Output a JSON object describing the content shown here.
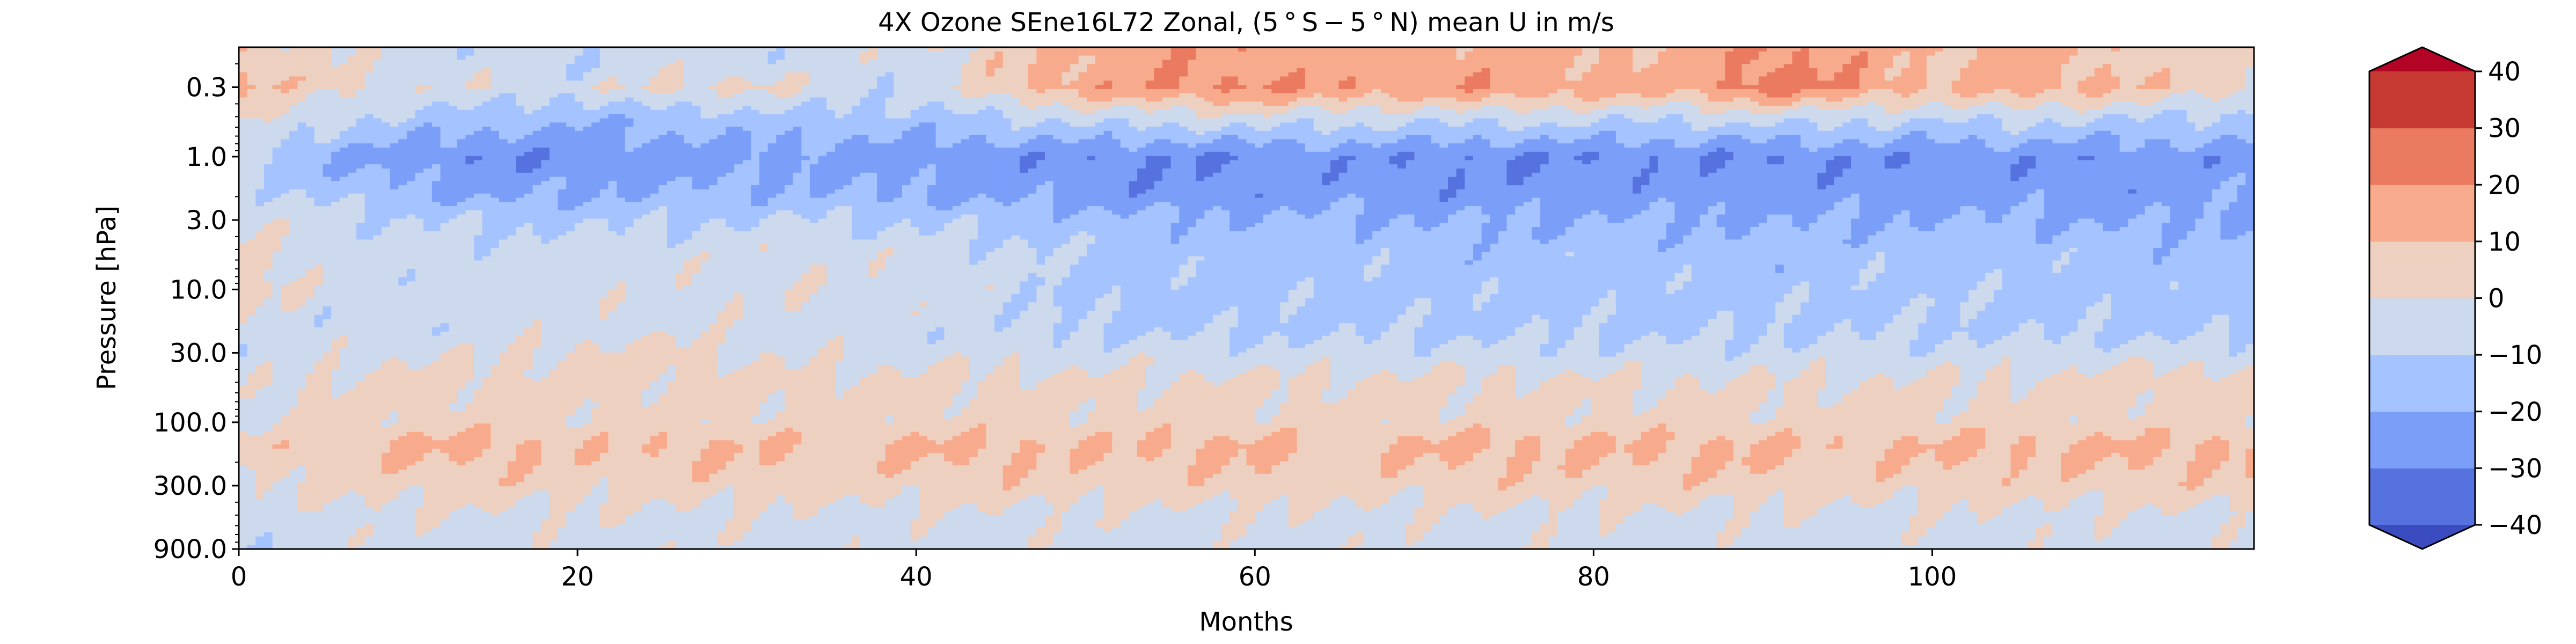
{
  "chart_data": {
    "type": "heatmap",
    "subtype": "filled-contour",
    "title": "4X Ozone SEne16L72 Zonal, (5$^\\circ$S$-$5$^\\circ$N) mean U in m/s",
    "title_display": "4X Ozone SEne16L72 Zonal, (5 ° S − 5 ° N) mean U in m/s",
    "xlabel": "Months",
    "ylabel": "Pressure [hPa]",
    "xlim": [
      0,
      119
    ],
    "ylim": [
      900,
      0.15
    ],
    "yscale": "log",
    "x_ticks": [
      0,
      20,
      40,
      60,
      80,
      100
    ],
    "x_tick_labels": [
      "0",
      "20",
      "40",
      "60",
      "80",
      "100"
    ],
    "y_ticks": [
      0.3,
      1.0,
      3.0,
      10.0,
      30.0,
      100.0,
      300.0,
      900.0
    ],
    "y_tick_labels": [
      "0.3",
      "1.0",
      "3.0",
      "10.0",
      "30.0",
      "100.0",
      "300.0",
      "900.0"
    ],
    "grid": false,
    "colormap": "coolwarm",
    "levels": [
      -40,
      -30,
      -20,
      -10,
      0,
      10,
      20,
      30,
      40
    ],
    "extend": "both",
    "level_colors": [
      "#3b4cc0",
      "#5572df",
      "#7b9ff9",
      "#a5c3fe",
      "#cdd9ec",
      "#eed0c0",
      "#f7aa8c",
      "#ea7b60",
      "#c73a33",
      "#b40426"
    ],
    "colorbar_tick_labels": [
      "40",
      "30",
      "20",
      "10",
      "0",
      "−10",
      "−20",
      "−30",
      "−40"
    ],
    "colorbar_ticks": [
      40,
      30,
      20,
      10,
      0,
      -10,
      -20,
      -30,
      -40
    ],
    "pressure_levels": [
      0.2,
      0.3,
      0.5,
      1.0,
      2.0,
      3.0,
      5.0,
      10.0,
      20.0,
      30.0,
      50.0,
      100.0,
      150.0,
      200.0,
      300.0,
      500.0,
      900.0
    ],
    "month_knots": [
      0,
      5,
      10,
      15,
      20,
      25,
      30,
      35,
      40,
      45,
      50,
      55,
      60,
      65,
      70,
      75,
      80,
      85,
      90,
      95,
      100,
      105,
      110,
      115,
      119
    ],
    "u_wind_knots": [
      [
        8,
        2,
        -6,
        -6,
        -8,
        -5,
        -6,
        -5,
        -4,
        7,
        14,
        18,
        16,
        14,
        15,
        14,
        12,
        11,
        22,
        17,
        8,
        14,
        9,
        4,
        2
      ],
      [
        12,
        4,
        -3,
        -2,
        -5,
        2,
        3,
        -4,
        -8,
        8,
        16,
        20,
        22,
        19,
        17,
        20,
        15,
        14,
        26,
        20,
        10,
        16,
        12,
        6,
        3
      ],
      [
        4,
        -6,
        -12,
        -14,
        -18,
        -15,
        -14,
        -12,
        -14,
        -10,
        -6,
        -4,
        -2,
        -5,
        -6,
        -5,
        -7,
        -8,
        -4,
        -6,
        -8,
        -6,
        -9,
        -10,
        -12
      ],
      [
        -8,
        -20,
        -25,
        -30,
        -28,
        -26,
        -24,
        -24,
        -26,
        -27,
        -28,
        -30,
        -29,
        -27,
        -28,
        -30,
        -29,
        -28,
        -30,
        -28,
        -28,
        -27,
        -27,
        -26,
        -25
      ],
      [
        -4,
        -12,
        -18,
        -22,
        -20,
        -18,
        -18,
        -18,
        -20,
        -22,
        -24,
        -26,
        -26,
        -24,
        -26,
        -25,
        -25,
        -24,
        -26,
        -24,
        -24,
        -24,
        -25,
        -24,
        -22
      ],
      [
        -2,
        -6,
        -10,
        -12,
        -12,
        -11,
        -10,
        -9,
        -12,
        -14,
        -16,
        -18,
        -19,
        -18,
        -20,
        -20,
        -19,
        -20,
        -21,
        -20,
        -20,
        -19,
        -21,
        -21,
        -20
      ],
      [
        2,
        -4,
        -6,
        -6,
        -6,
        -5,
        -4,
        -3,
        -6,
        -7,
        -12,
        -14,
        -15,
        -14,
        -15,
        -16,
        -15,
        -15,
        -16,
        -15,
        -14,
        -15,
        -15,
        -16,
        -15
      ],
      [
        6,
        -4,
        -5,
        -5,
        -4,
        -3,
        -2,
        -2,
        -4,
        -5,
        -14,
        -14,
        -14,
        -13,
        -14,
        -14,
        -14,
        -14,
        -14,
        -13,
        -12,
        -13,
        -14,
        -15,
        -14
      ],
      [
        -3,
        -6,
        -6,
        -5,
        -4,
        -3,
        -4,
        -5,
        -6,
        -7,
        -11,
        -12,
        -12,
        -12,
        -12,
        -12,
        -12,
        -12,
        -12,
        -11,
        -11,
        -12,
        -12,
        -12,
        -12
      ],
      [
        -6,
        -4,
        -2,
        -1,
        2,
        4,
        -2,
        -3,
        -4,
        -4,
        -6,
        -5,
        -6,
        -6,
        -6,
        -7,
        -7,
        -7,
        -6,
        -7,
        -6,
        -6,
        -5,
        -6,
        -6
      ],
      [
        -4,
        2,
        4,
        4,
        4,
        4,
        4,
        3,
        3,
        3,
        2,
        2,
        2,
        2,
        2,
        2,
        1,
        1,
        1,
        1,
        1,
        2,
        4,
        6,
        5
      ],
      [
        -3,
        3,
        4,
        4,
        3,
        3,
        3,
        4,
        4,
        4,
        4,
        4,
        4,
        4,
        4,
        4,
        4,
        4,
        4,
        4,
        4,
        4,
        4,
        3,
        3
      ],
      [
        5,
        8,
        12,
        13,
        8,
        10,
        11,
        8,
        12,
        12,
        9,
        12,
        12,
        8,
        12,
        12,
        11,
        12,
        12,
        8,
        12,
        11,
        12,
        13,
        12
      ],
      [
        3,
        7,
        9,
        10,
        7,
        9,
        9,
        7,
        9,
        10,
        8,
        9,
        10,
        7,
        9,
        10,
        9,
        10,
        10,
        7,
        9,
        9,
        10,
        10,
        10
      ],
      [
        -2,
        3,
        5,
        6,
        4,
        5,
        5,
        4,
        5,
        6,
        5,
        5,
        6,
        4,
        5,
        6,
        5,
        6,
        6,
        4,
        5,
        5,
        6,
        6,
        6
      ],
      [
        -6,
        -3,
        -2,
        -2,
        -2,
        -2,
        -2,
        -3,
        -2,
        -2,
        -2,
        -2,
        -2,
        -2,
        -2,
        -2,
        -2,
        -2,
        -2,
        -3,
        -2,
        -2,
        -2,
        -2,
        -2
      ],
      [
        -8,
        -5,
        -4,
        -4,
        -4,
        -4,
        -4,
        -5,
        -4,
        -4,
        -4,
        -4,
        -4,
        -4,
        -4,
        -4,
        -4,
        -4,
        -4,
        -5,
        -4,
        -4,
        -4,
        -4,
        -4
      ]
    ]
  }
}
